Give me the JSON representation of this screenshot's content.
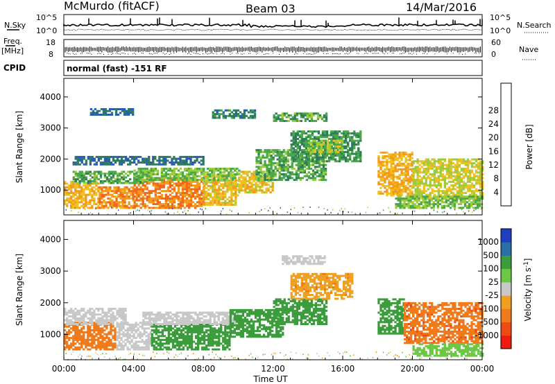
{
  "header": {
    "station": "McMurdo (fitACF)",
    "beam": "Beam 03",
    "date": "14/Mar/2016"
  },
  "noise_panel": {
    "left_label": "N.Sky",
    "right_label": "N.Search",
    "y_ticks": [
      "10^5",
      "10^0"
    ]
  },
  "freq_panel": {
    "left_label_top": "Freq.",
    "left_label_unit": "[MHz]",
    "left_ticks": [
      "18",
      "8"
    ],
    "right_label": "Nave",
    "right_ticks": [
      "60",
      "0"
    ]
  },
  "cpid_panel": {
    "label": "CPID",
    "value": "normal (fast) -151 RF"
  },
  "colors": {
    "power_scale": [
      "#0a14f0",
      "#2a5bb8",
      "#2e7d5a",
      "#4aa848",
      "#9ccc3c",
      "#f0c020",
      "#f29a1c",
      "#f06818",
      "#f02a10"
    ],
    "velocity_scale": [
      "#f01a10",
      "#f04a14",
      "#f07a1a",
      "#f0a020",
      "#c8c8c8",
      "#6cc844",
      "#3a9c3a",
      "#2a6ea8",
      "#1e40c0"
    ]
  },
  "chart_data": [
    {
      "type": "heatmap",
      "name": "power",
      "ylabel": "Slant Range [km]",
      "ylim": [
        200,
        4600
      ],
      "y_ticks": [
        1000,
        2000,
        3000,
        4000
      ],
      "xlim_hours": [
        0,
        24
      ],
      "x_ticks": [
        "00:00",
        "04:00",
        "08:00",
        "12:00",
        "16:00",
        "20:00",
        "00:00"
      ],
      "colorbar": {
        "label": "Power [dB]",
        "levels": [
          0,
          4,
          8,
          12,
          16,
          20,
          24,
          28,
          32
        ],
        "tick_labels": [
          "4",
          "8",
          "12",
          "16",
          "20",
          "24",
          "28"
        ]
      },
      "regions": [
        {
          "x0": 0.0,
          "x1": 2.0,
          "y0": 400,
          "y1": 1300,
          "value": 24
        },
        {
          "x0": 2.0,
          "x1": 4.0,
          "y0": 400,
          "y1": 1100,
          "value": 27
        },
        {
          "x0": 4.0,
          "x1": 8.0,
          "y0": 400,
          "y1": 1400,
          "value": 28
        },
        {
          "x0": 8.0,
          "x1": 10.0,
          "y0": 500,
          "y1": 1500,
          "value": 22
        },
        {
          "x0": 0.5,
          "x1": 5.0,
          "y0": 1200,
          "y1": 1600,
          "value": 14
        },
        {
          "x0": 4.0,
          "x1": 10.0,
          "y0": 1300,
          "y1": 1700,
          "value": 16
        },
        {
          "x0": 0.5,
          "x1": 8.0,
          "y0": 1800,
          "y1": 2100,
          "value": 8
        },
        {
          "x0": 10.0,
          "x1": 12.0,
          "y0": 900,
          "y1": 1600,
          "value": 22
        },
        {
          "x0": 11.0,
          "x1": 15.0,
          "y0": 1300,
          "y1": 2300,
          "value": 14
        },
        {
          "x0": 13.0,
          "x1": 17.0,
          "y0": 1900,
          "y1": 2900,
          "value": 12
        },
        {
          "x0": 14.0,
          "x1": 16.0,
          "y0": 2200,
          "y1": 2600,
          "value": 18
        },
        {
          "x0": 1.5,
          "x1": 4.0,
          "y0": 3400,
          "y1": 3600,
          "value": 8
        },
        {
          "x0": 8.5,
          "x1": 11.0,
          "y0": 3300,
          "y1": 3600,
          "value": 10
        },
        {
          "x0": 12.0,
          "x1": 15.0,
          "y0": 3200,
          "y1": 3500,
          "value": 14
        },
        {
          "x0": 18.0,
          "x1": 20.0,
          "y0": 800,
          "y1": 2200,
          "value": 24
        },
        {
          "x0": 20.0,
          "x1": 24.0,
          "y0": 700,
          "y1": 2000,
          "value": 20
        },
        {
          "x0": 19.0,
          "x1": 24.0,
          "y0": 400,
          "y1": 800,
          "value": 16
        }
      ]
    },
    {
      "type": "heatmap",
      "name": "velocity",
      "ylabel": "Slant Range [km]",
      "ylim": [
        200,
        4600
      ],
      "y_ticks": [
        1000,
        2000,
        3000,
        4000
      ],
      "xlim_hours": [
        0,
        24
      ],
      "x_ticks": [
        "00:00",
        "04:00",
        "08:00",
        "12:00",
        "16:00",
        "20:00",
        "00:00"
      ],
      "xlabel": "Time UT",
      "colorbar": {
        "label": "Velocity [m s^-1]",
        "tick_labels": [
          "-1000",
          "-500",
          "-100",
          "-25",
          "25",
          "100",
          "500",
          "1000"
        ]
      },
      "regions": [
        {
          "x0": 0.0,
          "x1": 3.0,
          "y0": 500,
          "y1": 1400,
          "value": -300
        },
        {
          "x0": 0.0,
          "x1": 3.5,
          "y0": 1300,
          "y1": 1800,
          "value": 0
        },
        {
          "x0": 3.0,
          "x1": 5.0,
          "y0": 500,
          "y1": 1400,
          "value": 0
        },
        {
          "x0": 5.0,
          "x1": 9.5,
          "y0": 500,
          "y1": 1300,
          "value": 150
        },
        {
          "x0": 4.5,
          "x1": 10.0,
          "y0": 1300,
          "y1": 1700,
          "value": 0
        },
        {
          "x0": 9.5,
          "x1": 12.5,
          "y0": 900,
          "y1": 1800,
          "value": 150
        },
        {
          "x0": 12.0,
          "x1": 15.0,
          "y0": 1300,
          "y1": 2100,
          "value": 150
        },
        {
          "x0": 13.0,
          "x1": 16.5,
          "y0": 2100,
          "y1": 2900,
          "value": -80
        },
        {
          "x0": 12.5,
          "x1": 15.0,
          "y0": 3200,
          "y1": 3500,
          "value": 0
        },
        {
          "x0": 18.0,
          "x1": 19.5,
          "y0": 1000,
          "y1": 2100,
          "value": 300
        },
        {
          "x0": 19.5,
          "x1": 24.0,
          "y0": 700,
          "y1": 2000,
          "value": -400
        },
        {
          "x0": 20.0,
          "x1": 24.0,
          "y0": 300,
          "y1": 700,
          "value": 60
        }
      ]
    }
  ]
}
